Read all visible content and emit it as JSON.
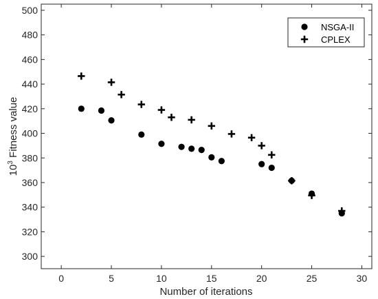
{
  "chart_data": {
    "type": "scatter",
    "xlabel": "Number of iterations",
    "ylabel": {
      "prefix": "10",
      "sup": "3",
      "suffix": " Fitness value"
    },
    "xlim": [
      -2,
      31
    ],
    "ylim": [
      290,
      505
    ],
    "xticks": [
      0,
      5,
      10,
      15,
      20,
      25,
      30
    ],
    "yticks": [
      300,
      320,
      340,
      360,
      380,
      400,
      420,
      440,
      460,
      480,
      500
    ],
    "grid": false,
    "legend_position": "top-right",
    "series": [
      {
        "name": "NSGA-II",
        "marker": "circle",
        "color": "#000000",
        "x": [
          2,
          4,
          5,
          8,
          10,
          12,
          13,
          14,
          15,
          16,
          20,
          21,
          23,
          25,
          28
        ],
        "y": [
          420,
          418.5,
          410.5,
          399,
          391.5,
          389,
          387.5,
          386.5,
          380.5,
          377.5,
          375,
          372,
          361.5,
          351,
          335
        ]
      },
      {
        "name": "CPLEX",
        "marker": "plus",
        "color": "#000000",
        "x": [
          2,
          5,
          6,
          8,
          10,
          11,
          13,
          15,
          17,
          19,
          20,
          21,
          23,
          25,
          28
        ],
        "y": [
          446.5,
          441.5,
          431.5,
          423.5,
          419,
          413,
          411,
          406,
          399.5,
          396.5,
          390,
          382.5,
          361.5,
          349.5,
          337
        ]
      }
    ]
  }
}
